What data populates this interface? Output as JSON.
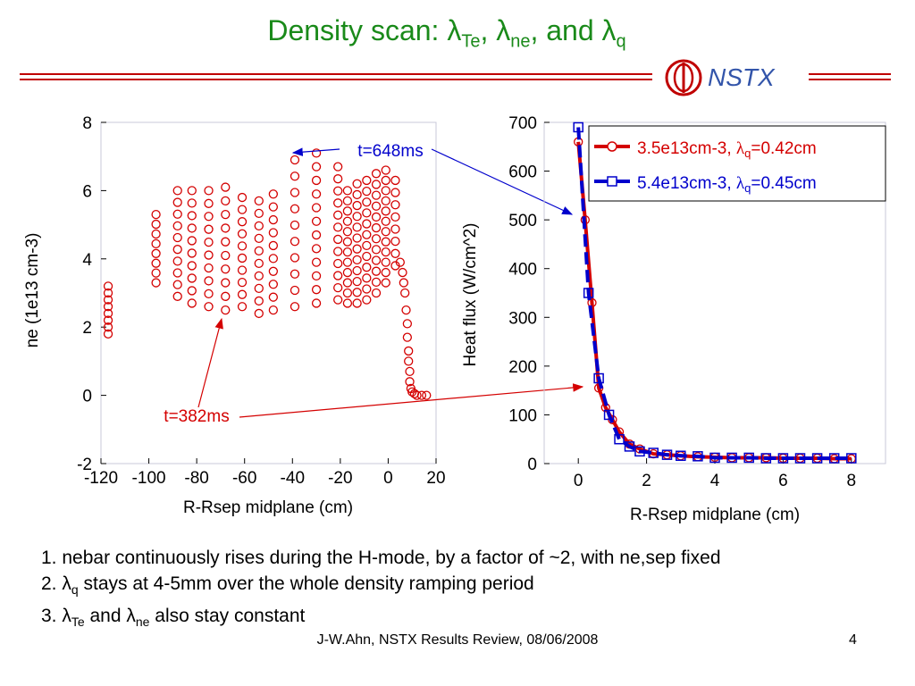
{
  "slide": {
    "title_main": "Density scan: ",
    "title_lambda_te": "λ",
    "title_sub_te": "Te",
    "title_sep1": ", ",
    "title_lambda_ne": "λ",
    "title_sub_ne": "ne",
    "title_sep2": ", and ",
    "title_lambda_q": "λ",
    "title_sub_q": "q",
    "logo_text": "NSTX",
    "bullets": [
      {
        "prefix": "1. ",
        "text": "nebar continuously rises during the H-mode, by a factor of ~2, with ne,sep fixed"
      },
      {
        "prefix": "2. ",
        "lambda": "λ",
        "sub": "q",
        "text": " stays at 4-5mm over the whole density ramping period"
      },
      {
        "prefix": "3. ",
        "lambda1": "λ",
        "sub1": "Te",
        "mid": " and ",
        "lambda2": "λ",
        "sub2": "ne",
        "text": " also stay constant"
      }
    ],
    "footer": "J-W.Ahn, NSTX Results Review, 08/06/2008",
    "page_number": "4",
    "colors": {
      "title": "#1a8a1a",
      "rule": "#c00000",
      "red": "#d40000",
      "blue": "#0000cc"
    }
  },
  "chart_data": [
    {
      "type": "scatter",
      "xlabel": "R-Rsep midplane (cm)",
      "ylabel": "ne (1e13 cm-3)",
      "xlim": [
        -120,
        20
      ],
      "ylim": [
        -2,
        8
      ],
      "xticks": [
        "-120",
        "-100",
        "-80",
        "-60",
        "-40",
        "-20",
        "0",
        "20"
      ],
      "yticks": [
        "-2",
        "0",
        "2",
        "4",
        "6",
        "8"
      ],
      "marker": "circle",
      "color": "#d40000",
      "columns": [
        {
          "x": -117,
          "ymin": 1.8,
          "ymax": 3.2,
          "n": 8
        },
        {
          "x": -97,
          "ymin": 3.3,
          "ymax": 5.3,
          "n": 8
        },
        {
          "x": -88,
          "ymin": 2.9,
          "ymax": 6.0,
          "n": 10
        },
        {
          "x": -82,
          "ymin": 2.7,
          "ymax": 6.0,
          "n": 10
        },
        {
          "x": -75,
          "ymin": 2.6,
          "ymax": 6.0,
          "n": 10
        },
        {
          "x": -68,
          "ymin": 2.5,
          "ymax": 6.1,
          "n": 10
        },
        {
          "x": -61,
          "ymin": 2.6,
          "ymax": 5.8,
          "n": 10
        },
        {
          "x": -54,
          "ymin": 2.4,
          "ymax": 5.7,
          "n": 10
        },
        {
          "x": -48,
          "ymin": 2.5,
          "ymax": 5.9,
          "n": 10
        },
        {
          "x": -39,
          "ymin": 2.6,
          "ymax": 6.9,
          "n": 10
        },
        {
          "x": -30,
          "ymin": 2.7,
          "ymax": 7.1,
          "n": 12
        },
        {
          "x": -21,
          "ymin": 2.8,
          "ymax": 6.7,
          "n": 12
        },
        {
          "x": -17,
          "ymin": 2.7,
          "ymax": 6.0,
          "n": 12
        },
        {
          "x": -13,
          "ymin": 2.7,
          "ymax": 6.2,
          "n": 12
        },
        {
          "x": -9,
          "ymin": 2.8,
          "ymax": 6.3,
          "n": 12
        },
        {
          "x": -5,
          "ymin": 3.0,
          "ymax": 6.5,
          "n": 12
        },
        {
          "x": -1,
          "ymin": 3.3,
          "ymax": 6.6,
          "n": 12
        },
        {
          "x": 3,
          "ymin": 3.8,
          "ymax": 6.3,
          "n": 8
        }
      ],
      "tail": [
        [
          5,
          3.9
        ],
        [
          6,
          3.6
        ],
        [
          6.5,
          3.3
        ],
        [
          7,
          3.0
        ],
        [
          7.5,
          2.5
        ],
        [
          8,
          2.1
        ],
        [
          8,
          1.7
        ],
        [
          8.5,
          1.3
        ],
        [
          8.5,
          1.0
        ],
        [
          9,
          0.7
        ],
        [
          9,
          0.4
        ],
        [
          9.5,
          0.2
        ],
        [
          10,
          0.1
        ],
        [
          11,
          0.05
        ],
        [
          12,
          0.0
        ],
        [
          14,
          0.0
        ],
        [
          16,
          0.0
        ]
      ],
      "annotations": [
        {
          "text": "t=648ms",
          "color": "#0000cc"
        },
        {
          "text": "t=382ms",
          "color": "#d40000"
        }
      ]
    },
    {
      "type": "line",
      "xlabel": "R-Rsep midplane (cm)",
      "ylabel": "Heat flux (W/cm^2)",
      "xlim": [
        -1,
        9
      ],
      "ylim": [
        0,
        700
      ],
      "xticks": [
        "0",
        "2",
        "4",
        "6",
        "8"
      ],
      "yticks": [
        "0",
        "100",
        "200",
        "300",
        "400",
        "500",
        "600",
        "700"
      ],
      "legend_position": "top-right",
      "series": [
        {
          "name": "3.5e13cm-3, ",
          "legend_lambda": "λ",
          "legend_sub": "q",
          "legend_value": "=0.42cm",
          "color": "#d40000",
          "marker": "circle",
          "line_style": "solid",
          "x": [
            0,
            0.2,
            0.4,
            0.6,
            0.8,
            1.0,
            1.2,
            1.5,
            1.8,
            2.2,
            2.6,
            3.0,
            3.5,
            4.0,
            4.5,
            5.0,
            5.5,
            6.0,
            6.5,
            7.0,
            7.5,
            8.0
          ],
          "y": [
            660,
            500,
            330,
            155,
            115,
            90,
            65,
            40,
            30,
            20,
            18,
            16,
            14,
            13,
            12,
            12,
            12,
            11,
            11,
            11,
            10,
            10
          ]
        },
        {
          "name": "5.4e13cm-3, ",
          "legend_lambda": "λ",
          "legend_sub": "q",
          "legend_value": "=0.45cm",
          "color": "#0000cc",
          "marker": "square",
          "line_style": "dashed",
          "x": [
            0,
            0.3,
            0.6,
            0.9,
            1.2,
            1.5,
            1.8,
            2.2,
            2.6,
            3.0,
            3.5,
            4.0,
            4.5,
            5.0,
            5.5,
            6.0,
            6.5,
            7.0,
            7.5,
            8.0
          ],
          "y": [
            690,
            350,
            175,
            100,
            50,
            35,
            25,
            22,
            18,
            16,
            15,
            12,
            12,
            12,
            11,
            11,
            11,
            11,
            11,
            11
          ]
        }
      ]
    }
  ]
}
